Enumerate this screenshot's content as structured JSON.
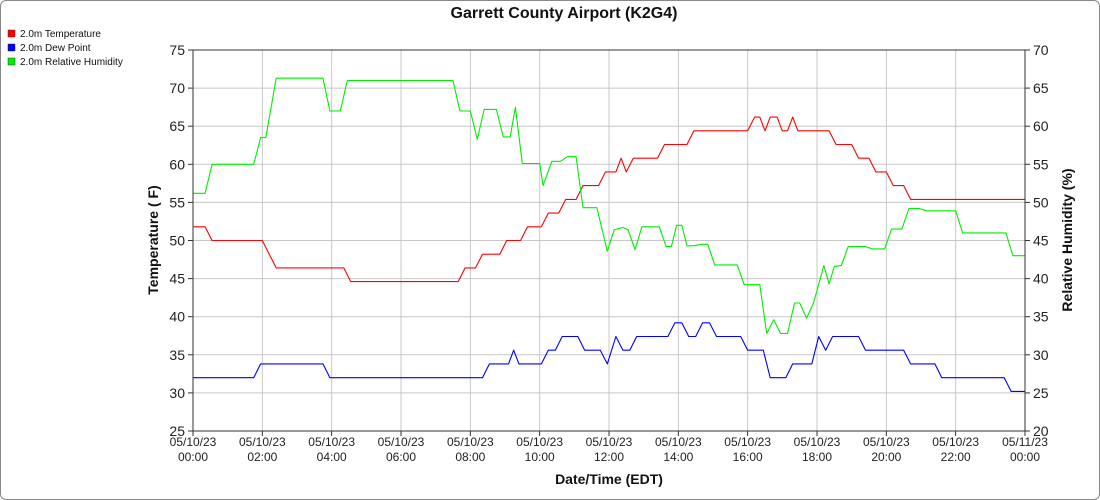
{
  "chart_data": {
    "type": "line",
    "title": "Garrett County Airport (K2G4)",
    "xlabel": "Date/Time (EDT)",
    "ylabel_left": "Temperature ( F)",
    "ylabel_right": "Relative Humidity (%)",
    "ylim_left": [
      25,
      75
    ],
    "ylim_right": [
      20,
      70
    ],
    "xlim_hours": [
      0,
      24
    ],
    "grid": true,
    "legend_position": "top-left",
    "x_ticks": [
      {
        "hour": 0,
        "date": "05/10/23",
        "time": "00:00"
      },
      {
        "hour": 2,
        "date": "05/10/23",
        "time": "02:00"
      },
      {
        "hour": 4,
        "date": "05/10/23",
        "time": "04:00"
      },
      {
        "hour": 6,
        "date": "05/10/23",
        "time": "06:00"
      },
      {
        "hour": 8,
        "date": "05/10/23",
        "time": "08:00"
      },
      {
        "hour": 10,
        "date": "05/10/23",
        "time": "10:00"
      },
      {
        "hour": 12,
        "date": "05/10/23",
        "time": "12:00"
      },
      {
        "hour": 14,
        "date": "05/10/23",
        "time": "14:00"
      },
      {
        "hour": 16,
        "date": "05/10/23",
        "time": "16:00"
      },
      {
        "hour": 18,
        "date": "05/10/23",
        "time": "18:00"
      },
      {
        "hour": 20,
        "date": "05/10/23",
        "time": "20:00"
      },
      {
        "hour": 22,
        "date": "05/10/23",
        "time": "22:00"
      },
      {
        "hour": 24,
        "date": "05/11/23",
        "time": "00:00"
      }
    ],
    "y_ticks_left": [
      25,
      30,
      35,
      40,
      45,
      50,
      55,
      60,
      65,
      70,
      75
    ],
    "y_ticks_right": [
      20,
      25,
      30,
      35,
      40,
      45,
      50,
      55,
      60,
      65,
      70
    ],
    "series": [
      {
        "name": "2.0m Temperature",
        "axis": "left",
        "color": "#ff0000",
        "points": [
          [
            0,
            51.8
          ],
          [
            0.35,
            51.8
          ],
          [
            0.55,
            50.0
          ],
          [
            2.0,
            50.0
          ],
          [
            2.4,
            46.4
          ],
          [
            4.35,
            46.4
          ],
          [
            4.55,
            44.6
          ],
          [
            7.65,
            44.6
          ],
          [
            7.85,
            46.4
          ],
          [
            8.15,
            46.4
          ],
          [
            8.35,
            48.2
          ],
          [
            8.85,
            48.2
          ],
          [
            9.05,
            50.0
          ],
          [
            9.45,
            50.0
          ],
          [
            9.65,
            51.8
          ],
          [
            10.05,
            51.8
          ],
          [
            10.25,
            53.6
          ],
          [
            10.55,
            53.6
          ],
          [
            10.75,
            55.4
          ],
          [
            11.05,
            55.4
          ],
          [
            11.25,
            57.2
          ],
          [
            11.7,
            57.2
          ],
          [
            11.9,
            59.0
          ],
          [
            12.2,
            59.0
          ],
          [
            12.35,
            60.8
          ],
          [
            12.5,
            59.0
          ],
          [
            12.7,
            60.8
          ],
          [
            13.4,
            60.8
          ],
          [
            13.6,
            62.6
          ],
          [
            14.25,
            62.6
          ],
          [
            14.45,
            64.4
          ],
          [
            16.0,
            64.4
          ],
          [
            16.2,
            66.2
          ],
          [
            16.35,
            66.2
          ],
          [
            16.5,
            64.4
          ],
          [
            16.65,
            66.2
          ],
          [
            16.85,
            66.2
          ],
          [
            17.0,
            64.4
          ],
          [
            17.15,
            64.4
          ],
          [
            17.3,
            66.2
          ],
          [
            17.45,
            64.4
          ],
          [
            18.35,
            64.4
          ],
          [
            18.55,
            62.6
          ],
          [
            19.0,
            62.6
          ],
          [
            19.2,
            60.8
          ],
          [
            19.5,
            60.8
          ],
          [
            19.7,
            59.0
          ],
          [
            20.0,
            59.0
          ],
          [
            20.2,
            57.2
          ],
          [
            20.5,
            57.2
          ],
          [
            20.7,
            55.4
          ],
          [
            24.0,
            55.4
          ]
        ]
      },
      {
        "name": "2.0m Dew Point",
        "axis": "left",
        "color": "#0000ff",
        "points": [
          [
            0,
            32.0
          ],
          [
            1.75,
            32.0
          ],
          [
            1.95,
            33.8
          ],
          [
            3.75,
            33.8
          ],
          [
            3.95,
            32.0
          ],
          [
            8.35,
            32.0
          ],
          [
            8.55,
            33.8
          ],
          [
            9.1,
            33.8
          ],
          [
            9.25,
            35.6
          ],
          [
            9.4,
            33.8
          ],
          [
            10.05,
            33.8
          ],
          [
            10.25,
            35.6
          ],
          [
            10.45,
            35.6
          ],
          [
            10.65,
            37.4
          ],
          [
            11.1,
            37.4
          ],
          [
            11.3,
            35.6
          ],
          [
            11.75,
            35.6
          ],
          [
            11.95,
            33.8
          ],
          [
            12.2,
            37.4
          ],
          [
            12.4,
            35.6
          ],
          [
            12.6,
            35.6
          ],
          [
            12.8,
            37.4
          ],
          [
            13.7,
            37.4
          ],
          [
            13.9,
            39.2
          ],
          [
            14.1,
            39.2
          ],
          [
            14.3,
            37.4
          ],
          [
            14.5,
            37.4
          ],
          [
            14.7,
            39.2
          ],
          [
            14.9,
            39.2
          ],
          [
            15.1,
            37.4
          ],
          [
            15.8,
            37.4
          ],
          [
            16.0,
            35.6
          ],
          [
            16.45,
            35.6
          ],
          [
            16.65,
            32.0
          ],
          [
            17.1,
            32.0
          ],
          [
            17.3,
            33.8
          ],
          [
            17.85,
            33.8
          ],
          [
            18.05,
            37.4
          ],
          [
            18.25,
            35.6
          ],
          [
            18.45,
            37.4
          ],
          [
            19.2,
            37.4
          ],
          [
            19.4,
            35.6
          ],
          [
            20.5,
            35.6
          ],
          [
            20.7,
            33.8
          ],
          [
            21.4,
            33.8
          ],
          [
            21.6,
            32.0
          ],
          [
            23.4,
            32.0
          ],
          [
            23.6,
            30.2
          ],
          [
            24.0,
            30.2
          ]
        ]
      },
      {
        "name": "2.0m Relative Humidity",
        "axis": "right",
        "color": "#00ee00",
        "points": [
          [
            0,
            51.2
          ],
          [
            0.35,
            51.2
          ],
          [
            0.55,
            55.0
          ],
          [
            1.75,
            55.0
          ],
          [
            1.95,
            58.5
          ],
          [
            2.1,
            58.5
          ],
          [
            2.4,
            66.3
          ],
          [
            3.75,
            66.3
          ],
          [
            3.95,
            62.0
          ],
          [
            4.25,
            62.0
          ],
          [
            4.45,
            66.0
          ],
          [
            7.5,
            66.0
          ],
          [
            7.7,
            62.0
          ],
          [
            8.0,
            62.0
          ],
          [
            8.2,
            58.3
          ],
          [
            8.4,
            62.2
          ],
          [
            8.75,
            62.2
          ],
          [
            8.95,
            58.6
          ],
          [
            9.15,
            58.6
          ],
          [
            9.3,
            62.5
          ],
          [
            9.5,
            55.1
          ],
          [
            10.0,
            55.1
          ],
          [
            10.1,
            52.2
          ],
          [
            10.35,
            55.4
          ],
          [
            10.6,
            55.4
          ],
          [
            10.8,
            56.0
          ],
          [
            11.05,
            56.0
          ],
          [
            11.25,
            49.3
          ],
          [
            11.65,
            49.3
          ],
          [
            11.95,
            43.6
          ],
          [
            12.15,
            46.4
          ],
          [
            12.4,
            46.7
          ],
          [
            12.55,
            46.4
          ],
          [
            12.75,
            43.8
          ],
          [
            12.95,
            46.8
          ],
          [
            13.45,
            46.8
          ],
          [
            13.65,
            44.2
          ],
          [
            13.8,
            44.2
          ],
          [
            13.95,
            47.0
          ],
          [
            14.1,
            47.0
          ],
          [
            14.25,
            44.3
          ],
          [
            14.45,
            44.3
          ],
          [
            14.65,
            44.5
          ],
          [
            14.85,
            44.5
          ],
          [
            15.05,
            41.8
          ],
          [
            15.7,
            41.8
          ],
          [
            15.9,
            39.2
          ],
          [
            16.35,
            39.2
          ],
          [
            16.55,
            32.8
          ],
          [
            16.75,
            34.6
          ],
          [
            16.95,
            32.8
          ],
          [
            17.15,
            32.8
          ],
          [
            17.35,
            36.8
          ],
          [
            17.5,
            36.8
          ],
          [
            17.7,
            34.8
          ],
          [
            17.9,
            36.8
          ],
          [
            18.2,
            41.7
          ],
          [
            18.35,
            39.3
          ],
          [
            18.5,
            41.6
          ],
          [
            18.7,
            41.7
          ],
          [
            18.9,
            44.2
          ],
          [
            19.4,
            44.2
          ],
          [
            19.6,
            43.9
          ],
          [
            19.95,
            43.9
          ],
          [
            20.15,
            46.5
          ],
          [
            20.45,
            46.5
          ],
          [
            20.65,
            49.2
          ],
          [
            20.95,
            49.2
          ],
          [
            21.15,
            48.9
          ],
          [
            22.0,
            48.9
          ],
          [
            22.2,
            46.0
          ],
          [
            23.45,
            46.0
          ],
          [
            23.65,
            43.0
          ],
          [
            24.0,
            43.0
          ]
        ]
      }
    ]
  }
}
